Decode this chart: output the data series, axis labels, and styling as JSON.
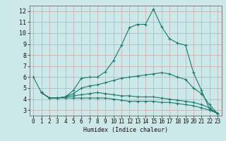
{
  "xlabel": "Humidex (Indice chaleur)",
  "background_color": "#cce8e8",
  "grid_color": "#b8d4d4",
  "line_color": "#1a7a6e",
  "xlim": [
    -0.5,
    23.5
  ],
  "ylim": [
    2.5,
    12.5
  ],
  "yticks": [
    3,
    4,
    5,
    6,
    7,
    8,
    9,
    10,
    11,
    12
  ],
  "xticks": [
    0,
    1,
    2,
    3,
    4,
    5,
    6,
    7,
    8,
    9,
    10,
    11,
    12,
    13,
    14,
    15,
    16,
    17,
    18,
    19,
    20,
    21,
    22,
    23
  ],
  "curves": [
    {
      "x": [
        0,
        1,
        2,
        3,
        4,
        5,
        6,
        7,
        8,
        9,
        10,
        11,
        12,
        13,
        14,
        15,
        16,
        17,
        18,
        19,
        20,
        21,
        22,
        23
      ],
      "y": [
        6.0,
        4.6,
        4.1,
        4.1,
        4.2,
        4.8,
        5.9,
        6.0,
        6.0,
        6.5,
        7.5,
        8.9,
        10.5,
        10.8,
        10.8,
        12.2,
        10.6,
        9.5,
        9.1,
        8.9,
        6.4,
        4.8,
        3.1,
        2.7
      ]
    },
    {
      "x": [
        1,
        2,
        3,
        4,
        5,
        6,
        7,
        8,
        9,
        10,
        11,
        12,
        13,
        14,
        15,
        16,
        17,
        18,
        19,
        20,
        21,
        22,
        23
      ],
      "y": [
        4.6,
        4.1,
        4.1,
        4.2,
        4.5,
        5.0,
        5.2,
        5.3,
        5.5,
        5.7,
        5.9,
        6.0,
        6.1,
        6.2,
        6.3,
        6.4,
        6.3,
        6.0,
        5.8,
        5.0,
        4.5,
        3.5,
        2.7
      ]
    },
    {
      "x": [
        1,
        2,
        3,
        4,
        5,
        6,
        7,
        8,
        9,
        10,
        11,
        12,
        13,
        14,
        15,
        16,
        17,
        18,
        19,
        20,
        21,
        22,
        23
      ],
      "y": [
        4.6,
        4.1,
        4.1,
        4.2,
        4.3,
        4.4,
        4.5,
        4.6,
        4.5,
        4.4,
        4.3,
        4.3,
        4.2,
        4.2,
        4.2,
        4.1,
        4.0,
        3.9,
        3.8,
        3.7,
        3.5,
        3.2,
        2.7
      ]
    },
    {
      "x": [
        1,
        2,
        3,
        4,
        5,
        6,
        7,
        8,
        9,
        10,
        11,
        12,
        13,
        14,
        15,
        16,
        17,
        18,
        19,
        20,
        21,
        22,
        23
      ],
      "y": [
        4.6,
        4.1,
        4.1,
        4.1,
        4.1,
        4.1,
        4.1,
        4.1,
        4.1,
        4.0,
        3.9,
        3.8,
        3.8,
        3.8,
        3.8,
        3.7,
        3.7,
        3.6,
        3.5,
        3.4,
        3.2,
        3.0,
        2.7
      ]
    }
  ]
}
